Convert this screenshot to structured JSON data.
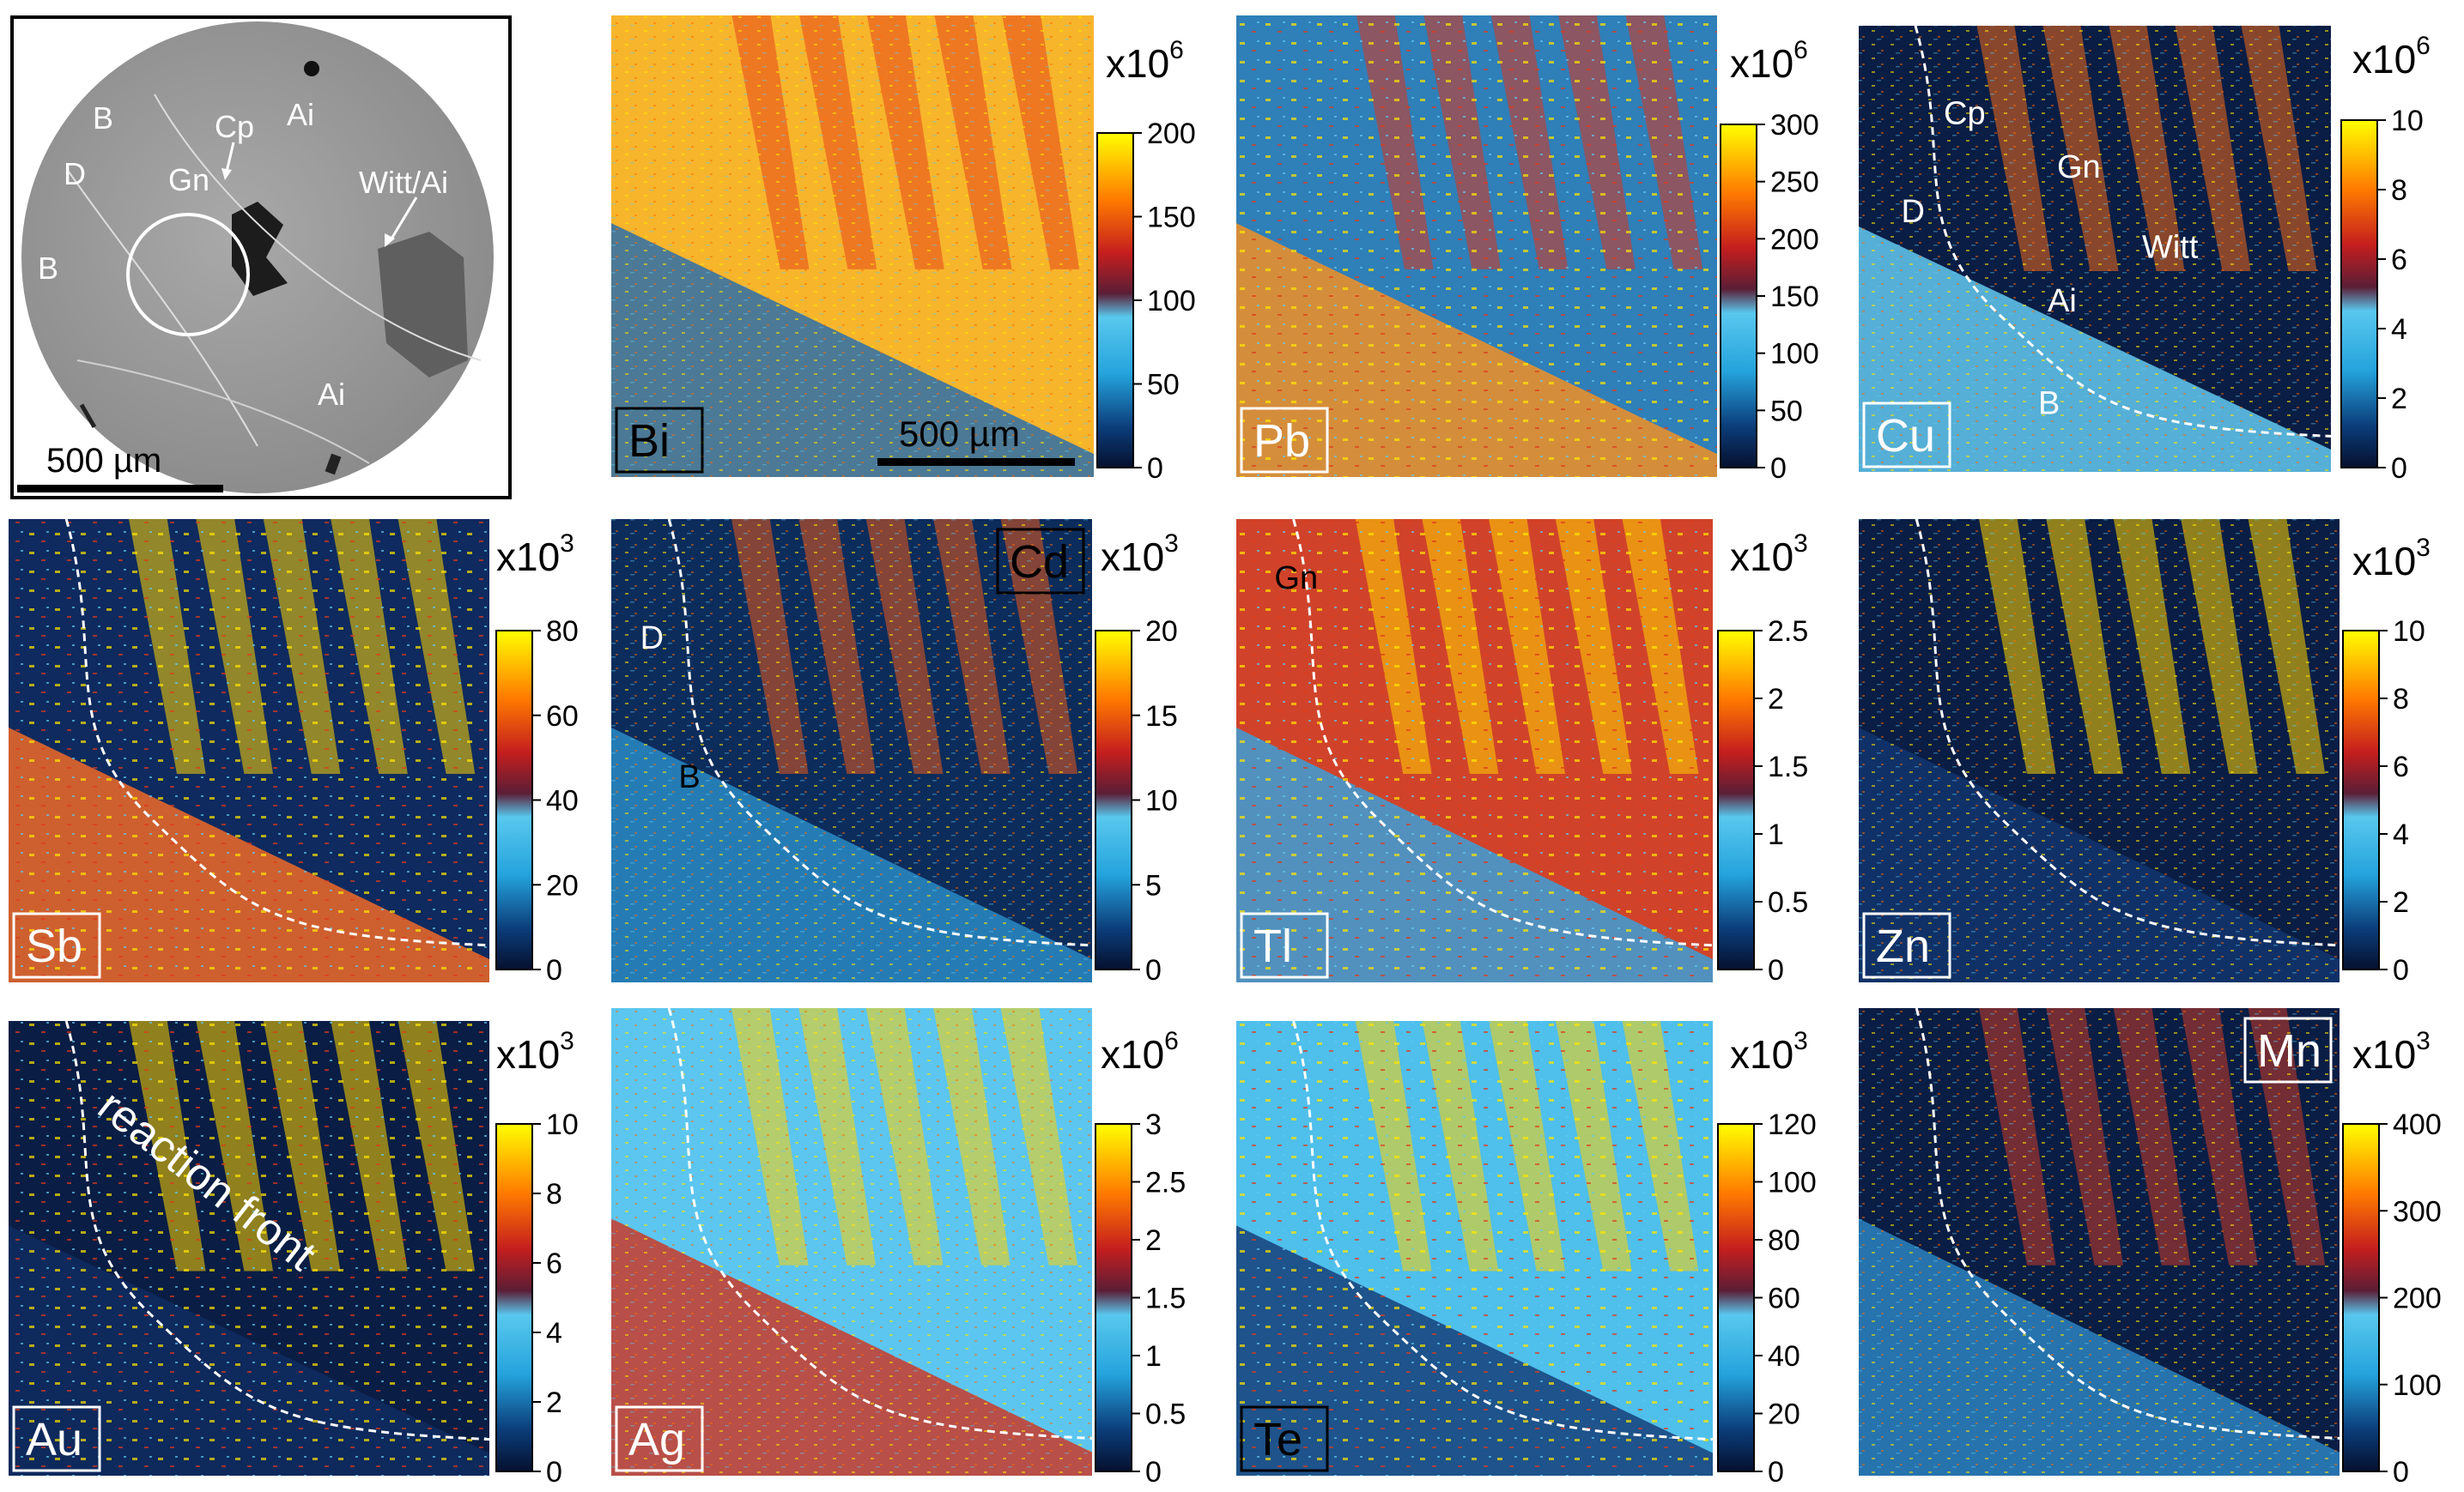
{
  "sem": {
    "labels": {
      "B1": "B",
      "D": "D",
      "B2": "B",
      "Gn": "Gn",
      "Cp": "Cp",
      "Ai1": "Ai",
      "Witt": "Witt/Ai",
      "Ai2": "Ai"
    },
    "scale": "500 µm"
  },
  "panels": [
    {
      "element": "Bi",
      "exp_base": "x10",
      "exp_power": "6",
      "ticks": [
        "200",
        "150",
        "100",
        "50",
        "0"
      ],
      "scale": "500 µm",
      "notes": []
    },
    {
      "element": "Pb",
      "exp_base": "x10",
      "exp_power": "6",
      "ticks": [
        "300",
        "250",
        "200",
        "150",
        "100",
        "50",
        "0"
      ],
      "notes": []
    },
    {
      "element": "Cu",
      "exp_base": "x10",
      "exp_power": "6",
      "ticks": [
        "10",
        "8",
        "6",
        "4",
        "2",
        "0"
      ],
      "notes": [
        "Cp",
        "Gn",
        "Witt",
        "D",
        "Ai",
        "B"
      ]
    },
    {
      "element": "Sb",
      "exp_base": "x10",
      "exp_power": "3",
      "ticks": [
        "80",
        "60",
        "40",
        "20",
        "0"
      ],
      "notes": []
    },
    {
      "element": "Cd",
      "exp_base": "x10",
      "exp_power": "3",
      "ticks": [
        "20",
        "15",
        "10",
        "5",
        "0"
      ],
      "notes": [
        "D",
        "B"
      ]
    },
    {
      "element": "Tl",
      "exp_base": "x10",
      "exp_power": "3",
      "ticks": [
        "2.5",
        "2",
        "1.5",
        "1",
        "0.5",
        "0"
      ],
      "notes": [
        "Gn"
      ]
    },
    {
      "element": "Zn",
      "exp_base": "x10",
      "exp_power": "3",
      "ticks": [
        "10",
        "8",
        "6",
        "4",
        "2",
        "0"
      ],
      "notes": []
    },
    {
      "element": "Au",
      "exp_base": "x10",
      "exp_power": "3",
      "ticks": [
        "10",
        "8",
        "6",
        "4",
        "2",
        "0"
      ],
      "notes": [
        "reaction front"
      ]
    },
    {
      "element": "Ag",
      "exp_base": "x10",
      "exp_power": "6",
      "ticks": [
        "3",
        "2.5",
        "2",
        "1.5",
        "1",
        "0.5",
        "0"
      ],
      "notes": []
    },
    {
      "element": "Te",
      "exp_base": "x10",
      "exp_power": "3",
      "ticks": [
        "120",
        "100",
        "80",
        "60",
        "40",
        "20",
        "0"
      ],
      "notes": []
    },
    {
      "element": "Mn",
      "exp_base": "x10",
      "exp_power": "3",
      "ticks": [
        "400",
        "300",
        "200",
        "100",
        "0"
      ],
      "notes": []
    }
  ]
}
